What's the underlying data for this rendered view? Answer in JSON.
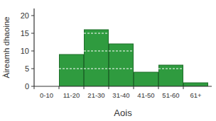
{
  "chart_data": {
    "type": "bar",
    "x_label": "Aois",
    "y_label": "Àireamh dhaoine",
    "categories": [
      "0-10",
      "11-20",
      "21-30",
      "31-40",
      "41-50",
      "51-60",
      "61+"
    ],
    "values": [
      0,
      9,
      16,
      12,
      4,
      6,
      1
    ],
    "color": "#2f9b3f",
    "ylim": [
      0,
      22
    ],
    "yticks": [
      0,
      5,
      10,
      15,
      20
    ],
    "grid": true
  }
}
